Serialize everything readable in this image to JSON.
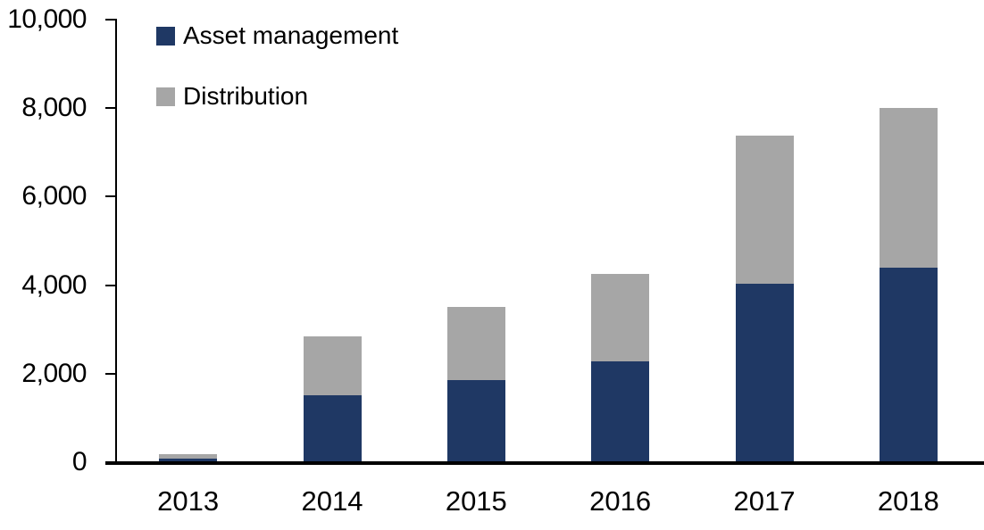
{
  "chart_data": {
    "type": "bar",
    "stacked": true,
    "title": "",
    "xlabel": "",
    "ylabel": "",
    "categories": [
      "2013",
      "2014",
      "2015",
      "2016",
      "2017",
      "2018"
    ],
    "series": [
      {
        "name": "Asset management",
        "color": "#1F3864",
        "values": [
          80,
          1520,
          1860,
          2280,
          4030,
          4400
        ]
      },
      {
        "name": "Distribution",
        "color": "#A6A6A6",
        "values": [
          100,
          1330,
          1640,
          1970,
          3350,
          3600
        ]
      }
    ],
    "totals": [
      180,
      2850,
      3500,
      4250,
      7380,
      8000
    ],
    "ylim": [
      0,
      10000
    ],
    "ytick_interval": 2000,
    "ytick_labels": [
      "0",
      "2,000",
      "4,000",
      "6,000",
      "8,000",
      "10,000"
    ],
    "grid": false,
    "legend_position": "top-left-inside",
    "axis_color": "#000000"
  }
}
